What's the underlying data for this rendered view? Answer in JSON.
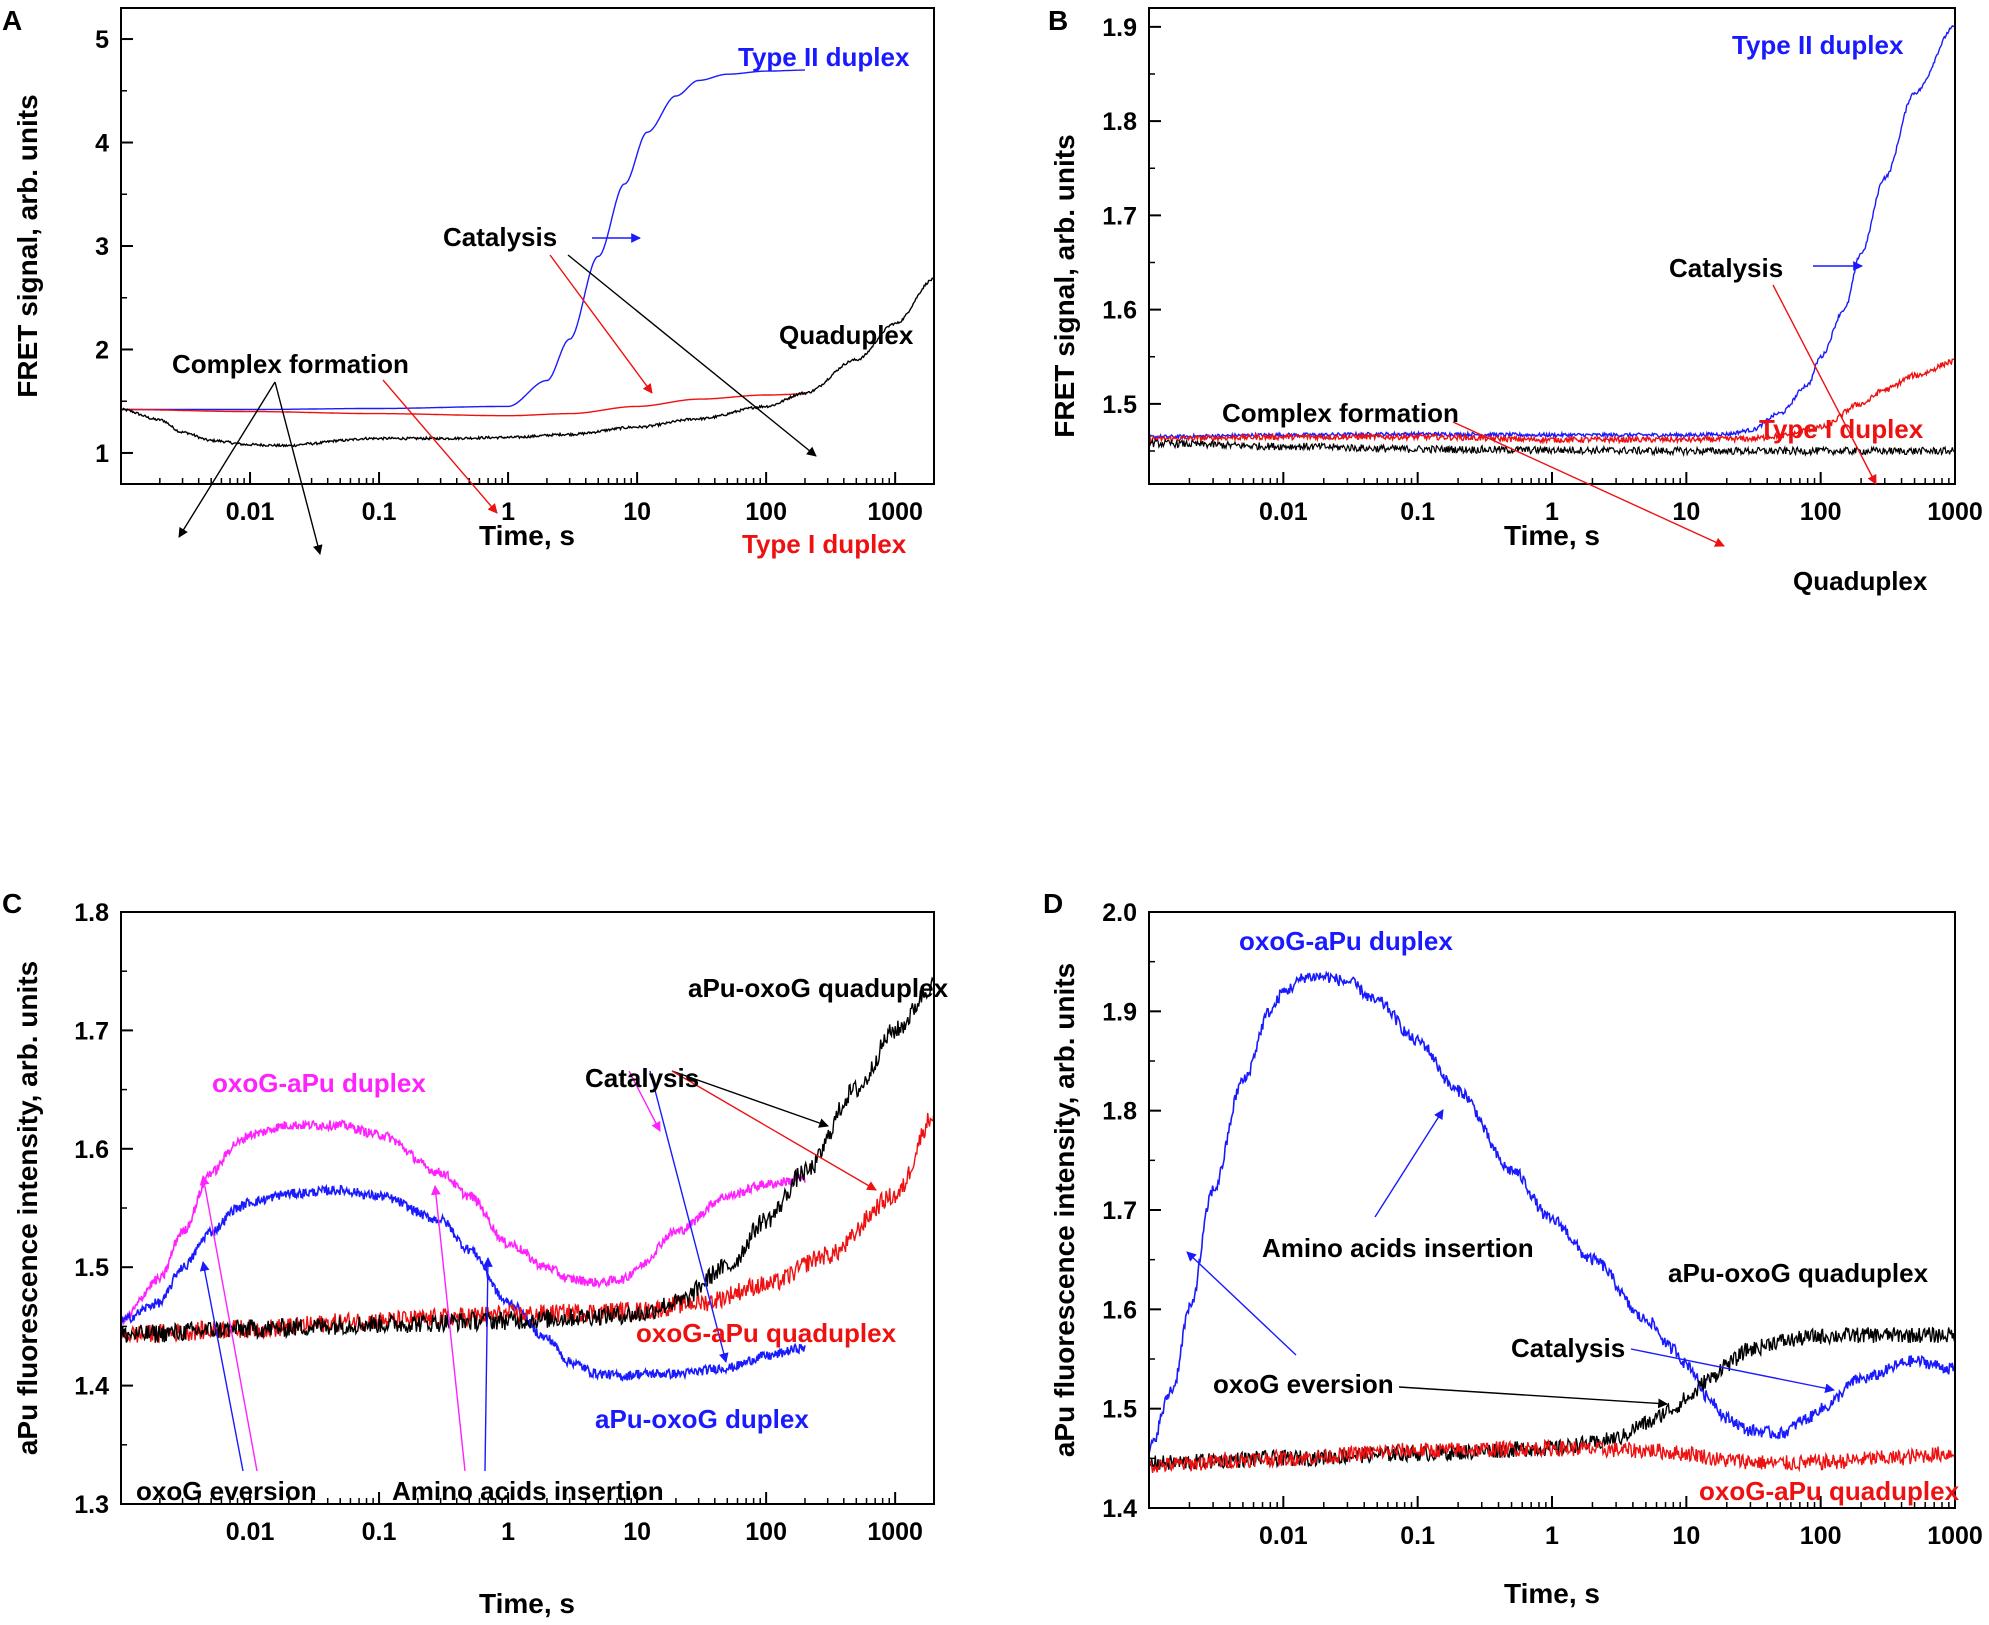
{
  "chart_data": [
    {
      "panel": "A",
      "type": "line",
      "xscale": "log",
      "xlim": [
        0.001,
        2000
      ],
      "ylim": [
        0.7,
        5.3
      ],
      "xticks": [
        {
          "v": 0.01,
          "label": "0.01"
        },
        {
          "v": 0.1,
          "label": "0.1"
        },
        {
          "v": 1,
          "label": "1"
        },
        {
          "v": 10,
          "label": "10"
        },
        {
          "v": 100,
          "label": "100"
        },
        {
          "v": 1000,
          "label": "1000"
        }
      ],
      "yticks": [
        {
          "v": 1,
          "label": "1"
        },
        {
          "v": 2,
          "label": "2"
        },
        {
          "v": 3,
          "label": "3"
        },
        {
          "v": 4,
          "label": "4"
        },
        {
          "v": 5,
          "label": "5"
        }
      ],
      "xlabel": "Time, s",
      "ylabel": "FRET signal, arb. units",
      "series": [
        {
          "name": "Type II duplex",
          "color": "#1a1aff",
          "width": 1.4,
          "noise": 0,
          "x": [
            0.001,
            0.01,
            0.1,
            1,
            2,
            3,
            5,
            8,
            12,
            20,
            30,
            50,
            100,
            200
          ],
          "y": [
            1.42,
            1.42,
            1.43,
            1.45,
            1.7,
            2.1,
            2.9,
            3.6,
            4.1,
            4.45,
            4.6,
            4.66,
            4.69,
            4.7
          ]
        },
        {
          "name": "Type I duplex",
          "color": "#ee1111",
          "width": 1.4,
          "noise": 0,
          "x": [
            0.001,
            0.01,
            0.1,
            1,
            3,
            10,
            30,
            100,
            200
          ],
          "y": [
            1.42,
            1.4,
            1.38,
            1.36,
            1.38,
            1.45,
            1.52,
            1.56,
            1.57
          ]
        },
        {
          "name": "Quaduplex",
          "color": "#000000",
          "width": 1.4,
          "noise": 0.012,
          "x": [
            0.001,
            0.002,
            0.003,
            0.005,
            0.01,
            0.02,
            0.03,
            0.05,
            0.08,
            0.1,
            0.3,
            1,
            3,
            10,
            30,
            100,
            200,
            500,
            1000,
            2000
          ],
          "y": [
            1.42,
            1.32,
            1.2,
            1.12,
            1.08,
            1.07,
            1.09,
            1.12,
            1.14,
            1.14,
            1.14,
            1.15,
            1.18,
            1.25,
            1.33,
            1.45,
            1.58,
            1.9,
            2.25,
            2.68
          ]
        }
      ],
      "annotations": [
        {
          "text": "Type II duplex",
          "color": "#1a1aff"
        },
        {
          "text": "Catalysis",
          "color": "#000000"
        },
        {
          "text": "Quaduplex",
          "color": "#000000"
        },
        {
          "text": "Complex formation",
          "color": "#000000"
        },
        {
          "text": "Type I duplex",
          "color": "#ee1111"
        }
      ]
    },
    {
      "panel": "B",
      "type": "line",
      "xscale": "log",
      "xlim": [
        0.001,
        1000
      ],
      "ylim": [
        1.415,
        1.92
      ],
      "xticks": [
        {
          "v": 0.01,
          "label": "0.01"
        },
        {
          "v": 0.1,
          "label": "0.1"
        },
        {
          "v": 1,
          "label": "1"
        },
        {
          "v": 10,
          "label": "10"
        },
        {
          "v": 100,
          "label": "100"
        },
        {
          "v": 1000,
          "label": "1000"
        }
      ],
      "yticks": [
        {
          "v": 1.5,
          "label": "1.5"
        },
        {
          "v": 1.6,
          "label": "1.6"
        },
        {
          "v": 1.7,
          "label": "1.7"
        },
        {
          "v": 1.8,
          "label": "1.8"
        },
        {
          "v": 1.9,
          "label": "1.9"
        }
      ],
      "xlabel": "Time, s",
      "ylabel": "FRET signal, arb. units",
      "series": [
        {
          "name": "Type II duplex",
          "color": "#1a1aff",
          "width": 1.4,
          "noise": 0.002,
          "x": [
            0.001,
            0.01,
            0.1,
            1,
            10,
            20,
            30,
            50,
            80,
            100,
            150,
            200,
            300,
            500,
            1000
          ],
          "y": [
            1.465,
            1.467,
            1.468,
            1.467,
            1.467,
            1.468,
            1.472,
            1.49,
            1.52,
            1.55,
            1.6,
            1.66,
            1.74,
            1.83,
            1.9
          ]
        },
        {
          "name": "Type I duplex",
          "color": "#ee1111",
          "width": 1.4,
          "noise": 0.003,
          "x": [
            0.001,
            0.01,
            0.1,
            1,
            10,
            30,
            50,
            100,
            200,
            300,
            500,
            1000
          ],
          "y": [
            1.463,
            1.465,
            1.465,
            1.462,
            1.462,
            1.463,
            1.466,
            1.475,
            1.5,
            1.515,
            1.53,
            1.545
          ]
        },
        {
          "name": "Quaduplex",
          "color": "#000000",
          "width": 1.2,
          "noise": 0.004,
          "x": [
            0.001,
            0.01,
            0.1,
            1,
            10,
            100,
            300,
            1000
          ],
          "y": [
            1.458,
            1.455,
            1.452,
            1.451,
            1.45,
            1.45,
            1.45,
            1.45
          ]
        }
      ],
      "annotations": [
        {
          "text": "Type II duplex",
          "color": "#1a1aff"
        },
        {
          "text": "Catalysis",
          "color": "#000000"
        },
        {
          "text": "Complex formation",
          "color": "#000000"
        },
        {
          "text": "Type I duplex",
          "color": "#ee1111"
        },
        {
          "text": "Quaduplex",
          "color": "#000000"
        }
      ]
    },
    {
      "panel": "C",
      "type": "line",
      "xscale": "log",
      "xlim": [
        0.001,
        2000
      ],
      "ylim": [
        1.3,
        1.8
      ],
      "xticks": [
        {
          "v": 0.01,
          "label": "0.01"
        },
        {
          "v": 0.1,
          "label": "0.1"
        },
        {
          "v": 1,
          "label": "1"
        },
        {
          "v": 10,
          "label": "10"
        },
        {
          "v": 100,
          "label": "100"
        },
        {
          "v": 1000,
          "label": "1000"
        }
      ],
      "yticks": [
        {
          "v": 1.3,
          "label": "1.3"
        },
        {
          "v": 1.4,
          "label": "1.4"
        },
        {
          "v": 1.5,
          "label": "1.5"
        },
        {
          "v": 1.6,
          "label": "1.6"
        },
        {
          "v": 1.7,
          "label": "1.7"
        },
        {
          "v": 1.8,
          "label": "1.8"
        }
      ],
      "xlabel": "Time, s",
      "ylabel": "aPu fluorescence intensity, arb. units",
      "series": [
        {
          "name": "oxoG-aPu duplex",
          "color": "#ff22ff",
          "width": 1.6,
          "noise": 0.004,
          "x": [
            0.001,
            0.002,
            0.003,
            0.005,
            0.008,
            0.01,
            0.02,
            0.05,
            0.1,
            0.3,
            0.5,
            1,
            2,
            3,
            5,
            8,
            10,
            20,
            50,
            100,
            200
          ],
          "y": [
            1.455,
            1.49,
            1.53,
            1.58,
            1.605,
            1.612,
            1.62,
            1.62,
            1.612,
            1.58,
            1.56,
            1.52,
            1.5,
            1.49,
            1.487,
            1.49,
            1.5,
            1.53,
            1.56,
            1.57,
            1.575
          ]
        },
        {
          "name": "aPu-oxoG duplex",
          "color": "#1a1aff",
          "width": 1.6,
          "noise": 0.004,
          "x": [
            0.001,
            0.002,
            0.003,
            0.005,
            0.008,
            0.01,
            0.02,
            0.05,
            0.1,
            0.3,
            0.5,
            1,
            2,
            3,
            5,
            8,
            10,
            20,
            50,
            100,
            200
          ],
          "y": [
            1.455,
            1.47,
            1.5,
            1.53,
            1.55,
            1.555,
            1.562,
            1.565,
            1.56,
            1.54,
            1.515,
            1.47,
            1.44,
            1.42,
            1.41,
            1.408,
            1.41,
            1.41,
            1.415,
            1.425,
            1.432
          ]
        },
        {
          "name": "oxoG-aPu quaduplex",
          "color": "#ee1111",
          "width": 1.4,
          "noise": 0.008,
          "x": [
            0.001,
            0.01,
            0.1,
            1,
            10,
            30,
            100,
            300,
            1000,
            2000
          ],
          "y": [
            1.443,
            1.448,
            1.455,
            1.46,
            1.463,
            1.47,
            1.485,
            1.51,
            1.56,
            1.628
          ]
        },
        {
          "name": "aPu-oxoG quaduplex",
          "color": "#000000",
          "width": 1.4,
          "noise": 0.008,
          "x": [
            0.001,
            0.01,
            0.1,
            1,
            10,
            20,
            50,
            100,
            200,
            500,
            1000,
            2000
          ],
          "y": [
            1.443,
            1.448,
            1.452,
            1.455,
            1.46,
            1.47,
            1.5,
            1.54,
            1.58,
            1.65,
            1.7,
            1.738
          ]
        }
      ],
      "annotations": [
        {
          "text": "aPu-oxoG quaduplex",
          "color": "#000000"
        },
        {
          "text": "oxoG-aPu duplex",
          "color": "#ff22ff"
        },
        {
          "text": "Catalysis",
          "color": "#000000"
        },
        {
          "text": "oxoG-aPu quaduplex",
          "color": "#ee1111"
        },
        {
          "text": "aPu-oxoG duplex",
          "color": "#1a1aff"
        },
        {
          "text": "oxoG eversion",
          "color": "#000000"
        },
        {
          "text": "Amino acids insertion",
          "color": "#000000"
        }
      ]
    },
    {
      "panel": "D",
      "type": "line",
      "xscale": "log",
      "xlim": [
        0.001,
        1000
      ],
      "ylim": [
        1.4,
        2.0
      ],
      "xticks": [
        {
          "v": 0.01,
          "label": "0.01"
        },
        {
          "v": 0.1,
          "label": "0.1"
        },
        {
          "v": 1,
          "label": "1"
        },
        {
          "v": 10,
          "label": "10"
        },
        {
          "v": 100,
          "label": "100"
        },
        {
          "v": 1000,
          "label": "1000"
        }
      ],
      "yticks": [
        {
          "v": 1.4,
          "label": "1.4"
        },
        {
          "v": 1.5,
          "label": "1.5"
        },
        {
          "v": 1.6,
          "label": "1.6"
        },
        {
          "v": 1.7,
          "label": "1.7"
        },
        {
          "v": 1.8,
          "label": "1.8"
        },
        {
          "v": 1.9,
          "label": "1.9"
        },
        {
          "v": 2.0,
          "label": "2.0"
        }
      ],
      "xlabel": "Time, s",
      "ylabel": "aPu fluorescence intensity, arb. units",
      "series": [
        {
          "name": "oxoG-aPu duplex",
          "color": "#1a1aff",
          "width": 1.6,
          "noise": 0.006,
          "x": [
            0.001,
            0.0015,
            0.002,
            0.003,
            0.005,
            0.008,
            0.01,
            0.015,
            0.02,
            0.03,
            0.05,
            0.1,
            0.2,
            0.5,
            1,
            2,
            5,
            8,
            10,
            15,
            20,
            30,
            50,
            80,
            100,
            200,
            500,
            1000
          ],
          "y": [
            1.46,
            1.52,
            1.6,
            1.72,
            1.83,
            1.9,
            1.92,
            1.935,
            1.935,
            1.93,
            1.91,
            1.87,
            1.82,
            1.74,
            1.69,
            1.65,
            1.59,
            1.56,
            1.545,
            1.51,
            1.49,
            1.478,
            1.475,
            1.49,
            1.5,
            1.53,
            1.548,
            1.54
          ]
        },
        {
          "name": "aPu-oxoG quaduplex",
          "color": "#000000",
          "width": 1.4,
          "noise": 0.008,
          "x": [
            0.001,
            0.01,
            0.1,
            1,
            2,
            3,
            5,
            8,
            10,
            15,
            20,
            30,
            50,
            100,
            200,
            500,
            1000
          ],
          "y": [
            1.445,
            1.45,
            1.455,
            1.46,
            1.465,
            1.47,
            1.485,
            1.5,
            1.51,
            1.53,
            1.545,
            1.56,
            1.568,
            1.573,
            1.574,
            1.574,
            1.574
          ]
        },
        {
          "name": "oxoG-aPu quaduplex",
          "color": "#ee1111",
          "width": 1.4,
          "noise": 0.008,
          "x": [
            0.001,
            0.01,
            0.1,
            1,
            5,
            10,
            20,
            50,
            100,
            300,
            1000
          ],
          "y": [
            1.443,
            1.45,
            1.458,
            1.46,
            1.458,
            1.455,
            1.448,
            1.445,
            1.446,
            1.45,
            1.455
          ]
        }
      ],
      "annotations": [
        {
          "text": "oxoG-aPu duplex",
          "color": "#1a1aff"
        },
        {
          "text": "Amino acids insertion",
          "color": "#000000"
        },
        {
          "text": "aPu-oxoG quaduplex",
          "color": "#000000"
        },
        {
          "text": "Catalysis",
          "color": "#000000"
        },
        {
          "text": "oxoG eversion",
          "color": "#000000"
        },
        {
          "text": "oxoG-aPu quaduplex",
          "color": "#ee1111"
        }
      ]
    }
  ]
}
